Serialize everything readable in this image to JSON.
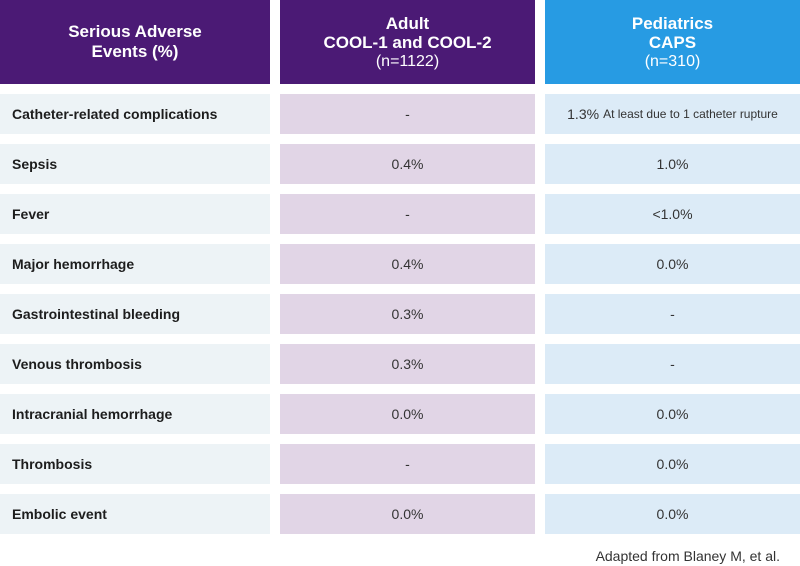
{
  "headers": {
    "col1": {
      "line1": "Serious Adverse",
      "line2": "Events (%)"
    },
    "col2": {
      "line1": "Adult",
      "line2": "COOL-1 and COOL-2",
      "line3": "(n=1122)"
    },
    "col3": {
      "line1": "Pediatrics",
      "line2": "CAPS",
      "line3": "(n=310)"
    }
  },
  "rows": [
    {
      "label": "Catheter-related complications",
      "adult": "-",
      "peds": "1.3%",
      "peds_note": "At least due to 1 catheter rupture"
    },
    {
      "label": "Sepsis",
      "adult": "0.4%",
      "peds": "1.0%"
    },
    {
      "label": "Fever",
      "adult": "-",
      "peds": "<1.0%"
    },
    {
      "label": "Major hemorrhage",
      "adult": "0.4%",
      "peds": "0.0%"
    },
    {
      "label": "Gastrointestinal bleeding",
      "adult": "0.3%",
      "peds": "-"
    },
    {
      "label": "Venous thrombosis",
      "adult": "0.3%",
      "peds": "-"
    },
    {
      "label": "Intracranial hemorrhage",
      "adult": "0.0%",
      "peds": "0.0%"
    },
    {
      "label": "Thrombosis",
      "adult": "-",
      "peds": "0.0%"
    },
    {
      "label": "Embolic event",
      "adult": "0.0%",
      "peds": "0.0%"
    }
  ],
  "footer": "Adapted from Blaney M, et al.",
  "colors": {
    "purple": "#4b1a75",
    "blue": "#279be3",
    "row_gray": "#edf3f6",
    "row_purple": "#e1d5e6",
    "row_blue": "#dcebf7"
  }
}
